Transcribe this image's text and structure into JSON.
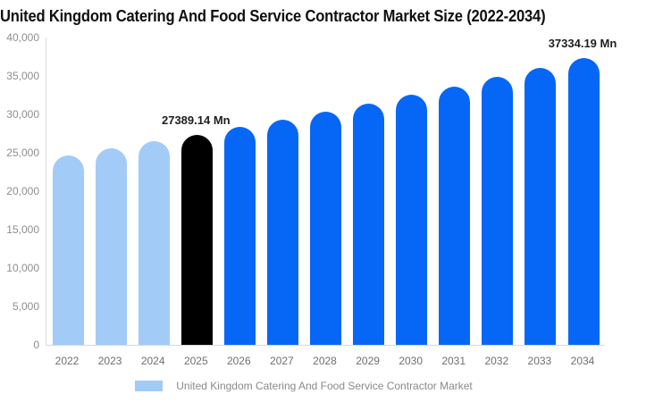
{
  "title": "United Kingdom Catering And Food Service Contractor Market Size (2022-2034)",
  "chart_data": {
    "type": "bar",
    "title": "United Kingdom Catering And Food Service Contractor Market Size (2022-2034)",
    "categories": [
      "2022",
      "2023",
      "2024",
      "2025",
      "2026",
      "2027",
      "2028",
      "2029",
      "2030",
      "2031",
      "2032",
      "2033",
      "2034"
    ],
    "values": [
      24703,
      25568,
      26463,
      27389.14,
      28348,
      29340,
      30367,
      31430,
      32530,
      33668,
      34847,
      36066,
      37334.19
    ],
    "value_unit": "Mn",
    "labeled_points": [
      {
        "category": "2025",
        "value": 27389.14,
        "label": "27389.14 Mn"
      },
      {
        "category": "2034",
        "value": 37334.19,
        "label": "37334.19 Mn"
      }
    ],
    "xlabel": "",
    "ylabel": "",
    "ylim": [
      0,
      40000
    ],
    "y_ticks": [
      "40,000",
      "35,000",
      "30,000",
      "25,000",
      "20,000",
      "15,000",
      "10,000",
      "5,000",
      "0"
    ],
    "grid": false,
    "legend": {
      "position": "bottom",
      "label": "United Kingdom Catering And Food Service Contractor Market",
      "swatch_color": "#A2CBF8"
    },
    "colors": {
      "historical": "#A2CBF8",
      "current": "#000000",
      "forecast": "#0667F6"
    },
    "bar_color_keys": [
      "historical",
      "historical",
      "historical",
      "current",
      "forecast",
      "forecast",
      "forecast",
      "forecast",
      "forecast",
      "forecast",
      "forecast",
      "forecast",
      "forecast"
    ],
    "axis_line_color": "#d9d9d9",
    "y_tick_label_color": "#8e8e8e",
    "x_tick_label_color": "#6f6f6f",
    "annotation_text_color": "#1f1f1f",
    "title_color": "#0f0f0f"
  }
}
